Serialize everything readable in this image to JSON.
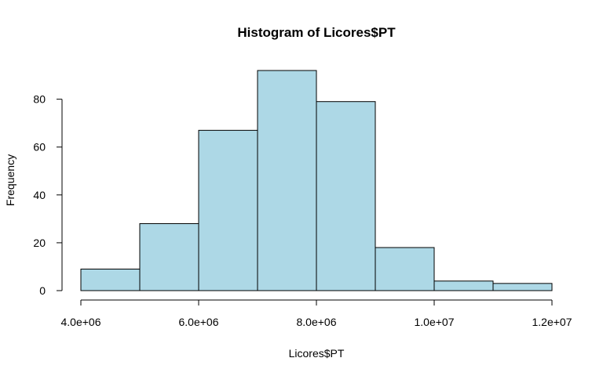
{
  "chart_data": {
    "type": "bar",
    "title": "Histogram of Licores$PT",
    "xlabel": "Licores$PT",
    "ylabel": "Frequency",
    "bins": [
      {
        "start": 4000000,
        "end": 5000000,
        "count": 9
      },
      {
        "start": 5000000,
        "end": 6000000,
        "count": 28
      },
      {
        "start": 6000000,
        "end": 7000000,
        "count": 67
      },
      {
        "start": 7000000,
        "end": 8000000,
        "count": 92
      },
      {
        "start": 8000000,
        "end": 9000000,
        "count": 79
      },
      {
        "start": 9000000,
        "end": 10000000,
        "count": 18
      },
      {
        "start": 10000000,
        "end": 11000000,
        "count": 4
      },
      {
        "start": 11000000,
        "end": 12000000,
        "count": 3
      }
    ],
    "xlim": [
      4000000,
      12000000
    ],
    "ylim": [
      0,
      92
    ],
    "x_ticks": [
      4000000,
      6000000,
      8000000,
      10000000,
      12000000
    ],
    "x_tick_labels": [
      "4.0e+06",
      "6.0e+06",
      "8.0e+06",
      "1.0e+07",
      "1.2e+07"
    ],
    "y_ticks": [
      0,
      20,
      40,
      60,
      80
    ],
    "y_tick_labels": [
      "0",
      "20",
      "40",
      "60",
      "80"
    ],
    "bar_color": "#add8e6",
    "grid": false
  }
}
